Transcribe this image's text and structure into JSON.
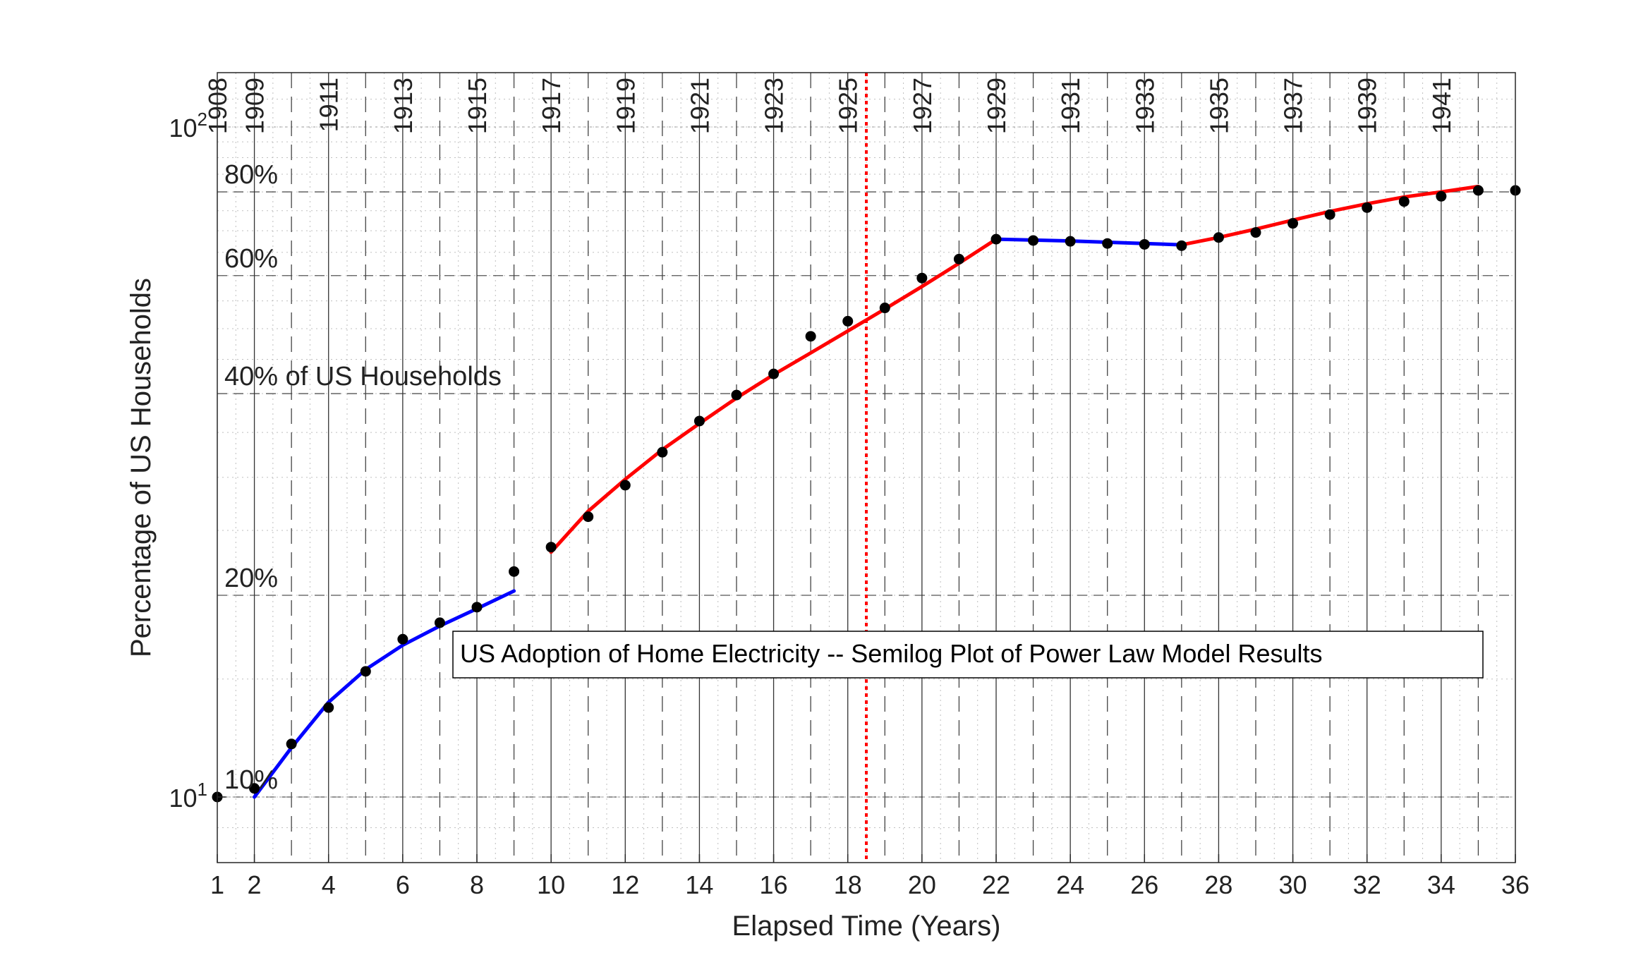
{
  "chart_data": {
    "type": "line",
    "title": "",
    "xlabel": "Elapsed Time (Years)",
    "ylabel": "Percentage of US Households",
    "yscale": "log",
    "xlim": [
      1,
      36
    ],
    "ylim": [
      8.8,
      116
    ],
    "x_ticks": [
      1,
      2,
      4,
      6,
      8,
      10,
      12,
      14,
      16,
      18,
      20,
      22,
      24,
      26,
      28,
      30,
      32,
      34,
      36
    ],
    "y_ticks": [
      {
        "value": 10,
        "base": "10",
        "exp": "1"
      },
      {
        "value": 100,
        "base": "10",
        "exp": "2"
      }
    ],
    "grid": true,
    "points": {
      "name": "",
      "color": "#000000",
      "x": [
        1,
        2,
        3,
        4,
        5,
        6,
        7,
        8,
        9,
        10,
        11,
        12,
        13,
        14,
        15,
        16,
        17,
        18,
        19,
        20,
        21,
        22,
        23,
        24,
        25,
        26,
        27,
        28,
        29,
        30,
        31,
        32,
        33,
        34,
        35,
        36
      ],
      "y": [
        10.0,
        10.3,
        12.0,
        13.6,
        15.4,
        17.2,
        18.2,
        19.2,
        21.7,
        23.6,
        26.2,
        29.2,
        32.7,
        36.4,
        39.8,
        42.8,
        48.7,
        51.3,
        53.7,
        59.5,
        63.5,
        68.0,
        67.7,
        67.5,
        67.0,
        66.8,
        66.5,
        68.4,
        69.6,
        71.8,
        74.0,
        75.8,
        77.4,
        78.8,
        80.4,
        80.4
      ]
    },
    "series": [
      {
        "name": "",
        "color": "#0000ff",
        "x": [
          2,
          3,
          4,
          5,
          6,
          7,
          8,
          9
        ],
        "y": [
          10.0,
          11.85,
          13.85,
          15.5,
          16.85,
          18.0,
          19.1,
          20.3
        ]
      },
      {
        "name": "",
        "color": "#ff0000",
        "x": [
          10,
          11,
          12,
          13,
          14,
          15,
          16,
          17,
          18,
          19,
          20,
          21,
          22
        ],
        "y": [
          23.2,
          26.7,
          29.8,
          33.0,
          36.1,
          39.4,
          42.7,
          46.0,
          49.6,
          53.5,
          57.8,
          62.6,
          68.0
        ]
      },
      {
        "name": "",
        "color": "#0000ff",
        "x": [
          22,
          24,
          26,
          27
        ],
        "y": [
          68.0,
          67.6,
          67.0,
          66.7
        ]
      },
      {
        "name": "",
        "color": "#ff0000",
        "x": [
          27,
          28,
          29,
          30,
          31,
          32,
          33,
          34,
          35
        ],
        "y": [
          66.7,
          68.4,
          70.4,
          72.6,
          74.8,
          76.8,
          78.6,
          80.0,
          81.5
        ]
      }
    ],
    "decade_lines": {
      "solid": [
        2,
        4,
        6,
        8,
        10,
        12,
        14,
        16,
        18,
        20,
        22,
        24,
        26,
        28,
        30,
        32,
        34
      ],
      "dashed": [
        3,
        5,
        7,
        9,
        11,
        13,
        15,
        17,
        19,
        21,
        23,
        25,
        27,
        29,
        31,
        33,
        35
      ]
    },
    "year_labels": [
      {
        "x": 1,
        "label": "1908"
      },
      {
        "x": 2,
        "label": "1909"
      },
      {
        "x": 4,
        "label": "1911"
      },
      {
        "x": 6,
        "label": "1913"
      },
      {
        "x": 8,
        "label": "1915"
      },
      {
        "x": 10,
        "label": "1917"
      },
      {
        "x": 12,
        "label": "1919"
      },
      {
        "x": 14,
        "label": "1921"
      },
      {
        "x": 16,
        "label": "1923"
      },
      {
        "x": 18,
        "label": "1925"
      },
      {
        "x": 20,
        "label": "1927"
      },
      {
        "x": 22,
        "label": "1929"
      },
      {
        "x": 24,
        "label": "1931"
      },
      {
        "x": 26,
        "label": "1933"
      },
      {
        "x": 28,
        "label": "1935"
      },
      {
        "x": 30,
        "label": "1937"
      },
      {
        "x": 32,
        "label": "1939"
      },
      {
        "x": 34,
        "label": "1941"
      }
    ],
    "percent_lines": [
      {
        "value": 80,
        "label": "80%"
      },
      {
        "value": 60,
        "label": "60%"
      },
      {
        "value": 40,
        "label": "40% of US Households"
      },
      {
        "value": 20,
        "label": "20%"
      },
      {
        "value": 10,
        "label": "10%"
      }
    ],
    "vertical_marker": {
      "x": 18.5,
      "color": "#ff0000",
      "style": "dotted"
    },
    "annotation": "US Adoption of Home Electricity -- Semilog Plot of Power Law Model Results"
  }
}
